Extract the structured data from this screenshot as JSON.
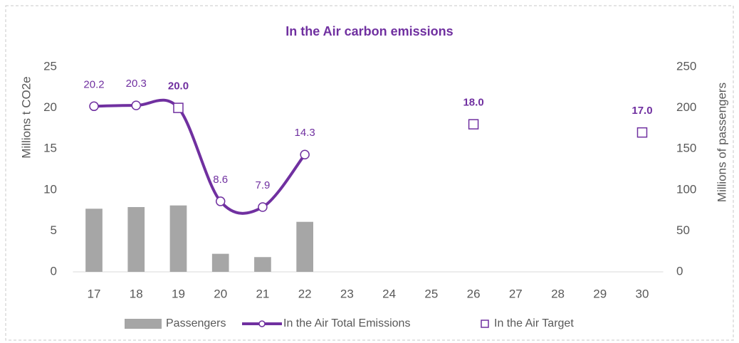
{
  "chart_data": {
    "type": "bar-line",
    "title": "In the Air carbon emissions",
    "y_label": "Millions t CO2e",
    "y2_label": "Millions of passengers",
    "categories": [
      "17",
      "18",
      "19",
      "20",
      "21",
      "22",
      "23",
      "24",
      "25",
      "26",
      "27",
      "28",
      "29",
      "30"
    ],
    "series": [
      {
        "name": "Passengers",
        "type": "bar",
        "axis": "y2",
        "color": "#a6a6a6",
        "values": [
          77,
          79,
          81,
          22,
          18,
          61,
          null,
          null,
          null,
          null,
          null,
          null,
          null,
          null
        ]
      },
      {
        "name": "In the Air Total Emissions",
        "type": "line",
        "color": "#7030a0",
        "values": [
          20.2,
          20.3,
          20.0,
          8.6,
          7.9,
          14.3,
          null,
          null,
          null,
          null,
          null,
          null,
          null,
          null
        ],
        "value_labels": [
          "20.2",
          "20.3",
          null,
          "8.6",
          "7.9",
          "14.3",
          null,
          null,
          null,
          null,
          null,
          null,
          null,
          null
        ]
      },
      {
        "name": "In the Air Target",
        "type": "marker",
        "color": "#7030a0",
        "values": [
          null,
          null,
          20.0,
          null,
          null,
          null,
          null,
          null,
          null,
          18.0,
          null,
          null,
          null,
          17.0
        ],
        "value_labels": [
          null,
          null,
          "20.0",
          null,
          null,
          null,
          null,
          null,
          null,
          "18.0",
          null,
          null,
          null,
          "17.0"
        ]
      }
    ],
    "ylim": [
      0,
      25
    ],
    "yticks": [
      0,
      5,
      10,
      15,
      20,
      25
    ],
    "y2lim": [
      0,
      250
    ],
    "y2ticks": [
      0,
      50,
      100,
      150,
      200,
      250
    ],
    "grid": false,
    "legend": "bottom"
  }
}
